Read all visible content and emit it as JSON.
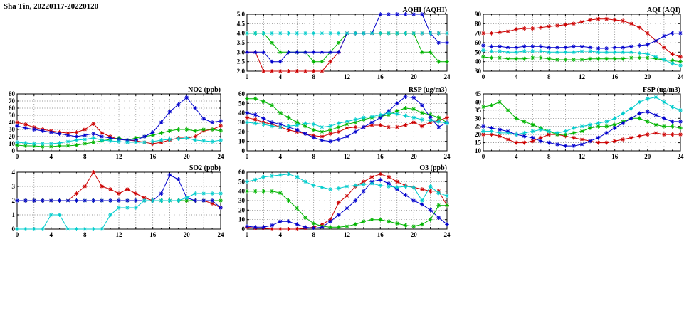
{
  "page": {
    "title": "Sha Tin, 20220117-20220120"
  },
  "colors": {
    "red": "#cc0000",
    "green": "#00b400",
    "blue": "#0000cc",
    "cyan": "#00cccc",
    "axis": "#000000",
    "grid": "#777777"
  },
  "chart_data": [
    {
      "id": "aqhi",
      "type": "line",
      "title": "AQHI (AQHI)",
      "xlim": [
        0,
        24
      ],
      "x_tick_labels": [
        0,
        4,
        8,
        12,
        16,
        20,
        24
      ],
      "x_tick_step": 4,
      "x_grid_step": 2,
      "ylim": [
        2.0,
        5.0
      ],
      "y_tick_step": 0.5,
      "y_decimals": 1,
      "x_unit": "hour",
      "x_points": 25,
      "grid": "dotted",
      "series": [
        {
          "name": "red",
          "color": "#cc0000",
          "values": [
            3,
            3,
            2,
            2,
            2,
            2,
            2,
            2,
            2,
            2,
            2.5,
            3,
            4,
            4,
            4,
            4,
            4,
            4,
            4,
            4,
            4,
            4,
            4,
            4,
            4
          ]
        },
        {
          "name": "green",
          "color": "#00b400",
          "values": [
            4,
            4,
            4,
            3.5,
            3,
            3,
            3,
            3,
            2.5,
            2.5,
            3,
            3.5,
            4,
            4,
            4,
            4,
            4,
            4,
            4,
            4,
            4,
            3,
            3,
            2.5,
            2.5
          ]
        },
        {
          "name": "blue",
          "color": "#0000cc",
          "values": [
            3,
            3,
            3,
            2.5,
            2.5,
            3,
            3,
            3,
            3,
            3,
            3,
            3,
            4,
            4,
            4,
            4,
            5,
            5,
            5,
            5,
            5,
            5,
            4,
            3.5,
            3.5
          ]
        },
        {
          "name": "cyan",
          "color": "#00cccc",
          "values": [
            4,
            4,
            4,
            4,
            4,
            4,
            4,
            4,
            4,
            4,
            4,
            4,
            4,
            4,
            4,
            4,
            4,
            4,
            4,
            4,
            4,
            4,
            4,
            4,
            4
          ]
        }
      ]
    },
    {
      "id": "aqi",
      "type": "line",
      "title": "AQI (AQI)",
      "xlim": [
        0,
        24
      ],
      "x_tick_labels": [
        0,
        4,
        8,
        12,
        16,
        20,
        24
      ],
      "x_tick_step": 4,
      "x_grid_step": 2,
      "ylim": [
        30,
        90
      ],
      "y_tick_step": 10,
      "y_decimals": 0,
      "x_unit": "hour",
      "x_points": 25,
      "grid": "dotted",
      "series": [
        {
          "name": "red",
          "color": "#cc0000",
          "values": [
            70,
            70,
            71,
            72,
            74,
            75,
            75,
            76,
            77,
            78,
            79,
            80,
            82,
            84,
            85,
            85,
            84,
            83,
            80,
            76,
            70,
            62,
            55,
            48,
            45
          ]
        },
        {
          "name": "green",
          "color": "#00b400",
          "values": [
            45,
            44,
            44,
            43,
            43,
            43,
            44,
            44,
            43,
            42,
            42,
            42,
            42,
            43,
            43,
            43,
            43,
            43,
            44,
            44,
            44,
            43,
            42,
            41,
            40
          ]
        },
        {
          "name": "blue",
          "color": "#0000cc",
          "values": [
            57,
            56,
            56,
            55,
            55,
            56,
            56,
            56,
            55,
            55,
            55,
            56,
            56,
            55,
            54,
            54,
            55,
            55,
            56,
            57,
            58,
            62,
            67,
            70,
            70
          ]
        },
        {
          "name": "cyan",
          "color": "#00cccc",
          "values": [
            52,
            51,
            51,
            50,
            50,
            51,
            51,
            51,
            50,
            50,
            50,
            50,
            51,
            51,
            50,
            50,
            50,
            50,
            50,
            49,
            48,
            45,
            42,
            38,
            36
          ]
        }
      ]
    },
    {
      "id": "no2",
      "type": "line",
      "title": "NO2 (ppb)",
      "xlim": [
        0,
        24
      ],
      "x_tick_labels": [
        0,
        4,
        8,
        12,
        16,
        20,
        24
      ],
      "x_tick_step": 4,
      "x_grid_step": 2,
      "ylim": [
        0,
        80
      ],
      "y_tick_step": 10,
      "y_decimals": 0,
      "x_unit": "hour",
      "x_points": 25,
      "grid": "dotted",
      "series": [
        {
          "name": "red",
          "color": "#cc0000",
          "values": [
            40,
            37,
            33,
            30,
            28,
            26,
            25,
            26,
            30,
            38,
            25,
            20,
            16,
            15,
            14,
            12,
            10,
            12,
            15,
            18,
            18,
            20,
            28,
            30,
            35
          ]
        },
        {
          "name": "green",
          "color": "#00b400",
          "values": [
            8,
            7,
            7,
            6,
            6,
            7,
            7,
            8,
            10,
            12,
            14,
            16,
            18,
            15,
            18,
            20,
            22,
            25,
            28,
            30,
            30,
            28,
            30,
            30,
            28
          ]
        },
        {
          "name": "blue",
          "color": "#0000cc",
          "values": [
            35,
            32,
            30,
            28,
            26,
            24,
            22,
            20,
            22,
            24,
            20,
            18,
            16,
            15,
            15,
            20,
            26,
            40,
            55,
            65,
            75,
            60,
            45,
            40,
            42
          ]
        },
        {
          "name": "cyan",
          "color": "#00cccc",
          "values": [
            12,
            11,
            10,
            10,
            10,
            11,
            13,
            15,
            16,
            18,
            15,
            14,
            13,
            12,
            12,
            12,
            13,
            15,
            16,
            17,
            18,
            15,
            14,
            13,
            15
          ]
        }
      ]
    },
    {
      "id": "rsp",
      "type": "line",
      "title": "RSP (ug/m3)",
      "xlim": [
        0,
        24
      ],
      "x_tick_labels": [
        0,
        4,
        8,
        12,
        16,
        20,
        24
      ],
      "x_tick_step": 4,
      "x_grid_step": 2,
      "ylim": [
        0,
        60
      ],
      "y_tick_step": 10,
      "y_decimals": 0,
      "x_unit": "hour",
      "x_points": 25,
      "grid": "dotted",
      "series": [
        {
          "name": "red",
          "color": "#cc0000",
          "values": [
            35,
            33,
            30,
            28,
            25,
            22,
            20,
            18,
            16,
            15,
            18,
            20,
            24,
            25,
            25,
            27,
            27,
            25,
            25,
            27,
            30,
            26,
            30,
            32,
            35
          ]
        },
        {
          "name": "green",
          "color": "#00b400",
          "values": [
            55,
            55,
            52,
            48,
            40,
            35,
            30,
            26,
            22,
            20,
            22,
            25,
            28,
            30,
            33,
            35,
            36,
            38,
            42,
            45,
            44,
            40,
            38,
            35,
            30
          ]
        },
        {
          "name": "blue",
          "color": "#0000cc",
          "values": [
            40,
            38,
            34,
            30,
            28,
            25,
            22,
            18,
            14,
            11,
            10,
            12,
            15,
            20,
            25,
            30,
            35,
            42,
            50,
            57,
            56,
            48,
            35,
            25,
            30
          ]
        },
        {
          "name": "cyan",
          "color": "#00cccc",
          "values": [
            30,
            29,
            28,
            26,
            25,
            26,
            27,
            29,
            28,
            25,
            26,
            29,
            31,
            33,
            35,
            36,
            38,
            40,
            39,
            37,
            35,
            33,
            32,
            31,
            29
          ]
        }
      ]
    },
    {
      "id": "fsp",
      "type": "line",
      "title": "FSP (ug/m3)",
      "xlim": [
        0,
        24
      ],
      "x_tick_labels": [
        0,
        4,
        8,
        12,
        16,
        20,
        24
      ],
      "x_tick_step": 4,
      "x_grid_step": 2,
      "ylim": [
        10,
        45
      ],
      "y_tick_step": 5,
      "y_decimals": 0,
      "x_unit": "hour",
      "x_points": 25,
      "grid": "dotted",
      "series": [
        {
          "name": "red",
          "color": "#cc0000",
          "values": [
            20,
            20,
            19,
            17,
            15,
            15,
            16,
            18,
            20,
            20,
            19,
            18,
            17,
            16,
            15,
            15,
            16,
            17,
            18,
            19,
            20,
            21,
            20,
            20,
            20
          ]
        },
        {
          "name": "green",
          "color": "#00b400",
          "values": [
            37,
            38,
            40,
            35,
            30,
            28,
            26,
            24,
            22,
            20,
            20,
            21,
            22,
            24,
            25,
            25,
            26,
            28,
            30,
            30,
            28,
            26,
            25,
            25,
            24
          ]
        },
        {
          "name": "blue",
          "color": "#0000cc",
          "values": [
            25,
            24,
            23,
            22,
            20,
            19,
            18,
            16,
            15,
            14,
            13,
            13,
            14,
            16,
            18,
            21,
            24,
            27,
            30,
            33,
            34,
            32,
            30,
            28,
            28
          ]
        },
        {
          "name": "cyan",
          "color": "#00cccc",
          "values": [
            22,
            22,
            21,
            21,
            20,
            21,
            22,
            23,
            22,
            21,
            22,
            24,
            25,
            26,
            27,
            28,
            30,
            33,
            36,
            40,
            42,
            43,
            40,
            37,
            35
          ]
        }
      ]
    },
    {
      "id": "so2",
      "type": "line",
      "title": "SO2 (ppb)",
      "xlim": [
        0,
        24
      ],
      "x_tick_labels": [
        0,
        4,
        8,
        12,
        16,
        20,
        24
      ],
      "x_tick_step": 4,
      "x_grid_step": 2,
      "ylim": [
        0,
        4
      ],
      "y_tick_step": 1,
      "y_decimals": 0,
      "x_unit": "hour",
      "x_points": 25,
      "grid": "dotted",
      "series": [
        {
          "name": "red",
          "color": "#cc0000",
          "values": [
            2,
            2,
            2,
            2,
            2,
            2,
            2,
            2.5,
            3,
            4,
            3,
            2.8,
            2.5,
            2.8,
            2.5,
            2.2,
            2,
            2,
            2,
            2,
            2,
            2,
            2,
            1.8,
            1.5
          ]
        },
        {
          "name": "green",
          "color": "#00b400",
          "values": [
            2,
            2,
            2,
            2,
            2,
            2,
            2,
            2,
            2,
            2,
            2,
            2,
            2,
            2,
            2,
            2,
            2,
            2,
            2,
            2,
            2,
            2,
            2,
            2,
            2
          ]
        },
        {
          "name": "blue",
          "color": "#0000cc",
          "values": [
            2,
            2,
            2,
            2,
            2,
            2,
            2,
            2,
            2,
            2,
            2,
            2,
            2,
            2,
            2,
            2,
            2,
            2.5,
            3.8,
            3.5,
            2.2,
            2,
            2,
            2,
            1.5
          ]
        },
        {
          "name": "cyan",
          "color": "#00cccc",
          "values": [
            0,
            0,
            0,
            0,
            1,
            1,
            0,
            0,
            0,
            0,
            0,
            1,
            1.5,
            1.5,
            1.5,
            2,
            2,
            2,
            2,
            2,
            2.2,
            2.5,
            2.5,
            2.5,
            2.5
          ]
        }
      ]
    },
    {
      "id": "o3",
      "type": "line",
      "title": "O3 (ppb)",
      "xlim": [
        0,
        24
      ],
      "x_tick_labels": [
        0,
        4,
        8,
        12,
        16,
        20,
        24
      ],
      "x_tick_step": 4,
      "x_grid_step": 2,
      "ylim": [
        0,
        60
      ],
      "y_tick_step": 10,
      "y_decimals": 0,
      "x_unit": "hour",
      "x_points": 25,
      "grid": "dotted",
      "series": [
        {
          "name": "red",
          "color": "#cc0000",
          "values": [
            2,
            1,
            1,
            0,
            0,
            0,
            0,
            1,
            2,
            5,
            10,
            28,
            35,
            45,
            50,
            55,
            58,
            55,
            50,
            46,
            44,
            42,
            40,
            40,
            25
          ]
        },
        {
          "name": "green",
          "color": "#00b400",
          "values": [
            40,
            40,
            40,
            40,
            38,
            30,
            22,
            12,
            6,
            3,
            2,
            2,
            3,
            5,
            8,
            10,
            10,
            8,
            6,
            4,
            3,
            5,
            10,
            25,
            25
          ]
        },
        {
          "name": "blue",
          "color": "#0000cc",
          "values": [
            3,
            2,
            2,
            4,
            8,
            8,
            5,
            2,
            1,
            2,
            8,
            15,
            22,
            30,
            40,
            50,
            52,
            48,
            42,
            36,
            30,
            26,
            20,
            12,
            5
          ]
        },
        {
          "name": "cyan",
          "color": "#00cccc",
          "values": [
            50,
            52,
            55,
            56,
            57,
            58,
            55,
            50,
            46,
            44,
            42,
            43,
            45,
            46,
            47,
            48,
            46,
            45,
            44,
            45,
            44,
            30,
            45,
            38,
            35
          ]
        }
      ]
    }
  ]
}
